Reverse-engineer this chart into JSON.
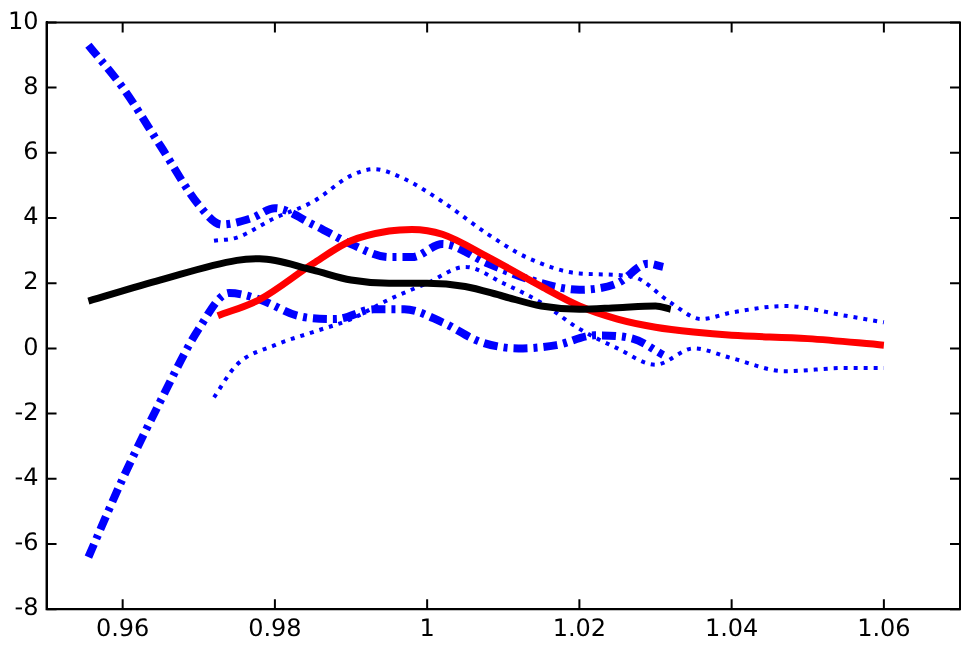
{
  "chart_data": {
    "type": "line",
    "xlim": [
      0.95,
      1.07
    ],
    "xticks": [
      {
        "value": 0.96,
        "label": "0.96"
      },
      {
        "value": 0.98,
        "label": "0.98"
      },
      {
        "value": 1,
        "label": "1"
      },
      {
        "value": 1.02,
        "label": "1.02"
      },
      {
        "value": 1.04,
        "label": "1.04"
      },
      {
        "value": 1.06,
        "label": "1.06"
      }
    ],
    "ylim": [
      -8,
      10
    ],
    "yticks": [
      -8,
      -6,
      -4,
      -2,
      0,
      2,
      4,
      6,
      8,
      10
    ],
    "grid": false,
    "legend": false,
    "marker": "none",
    "series": [
      {
        "color": "#000000",
        "line_style": "solid",
        "x": [
          0.9555,
          0.965,
          0.975,
          0.978,
          0.985,
          0.99,
          0.995,
          1.0,
          1.005,
          1.01,
          1.015,
          1.02,
          1.025,
          1.03,
          1.032
        ],
        "values": [
          1.45,
          2.1,
          2.7,
          2.75,
          2.4,
          2.1,
          2.0,
          2.0,
          1.9,
          1.6,
          1.3,
          1.2,
          1.25,
          1.3,
          1.2
        ]
      },
      {
        "color": "#ff0000",
        "line_style": "solid",
        "x": [
          0.9725,
          0.978,
          0.985,
          0.99,
          0.995,
          0.998,
          1.002,
          1.008,
          1.015,
          1.02,
          1.025,
          1.03,
          1.035,
          1.04,
          1.05,
          1.06
        ],
        "values": [
          1.0,
          1.5,
          2.6,
          3.3,
          3.6,
          3.65,
          3.5,
          2.8,
          1.9,
          1.3,
          0.9,
          0.65,
          0.5,
          0.4,
          0.3,
          0.1
        ]
      },
      {
        "color": "#0000ff",
        "line_style": "dashdot",
        "x": [
          0.9555,
          0.96,
          0.965,
          0.97,
          0.973,
          0.977,
          0.98,
          0.985,
          0.99,
          0.995,
          0.998,
          1.002,
          1.008,
          1.015,
          1.02,
          1.025,
          1.029,
          1.031
        ],
        "values": [
          9.3,
          8.0,
          6.2,
          4.4,
          3.8,
          4.0,
          4.3,
          3.8,
          3.2,
          2.8,
          2.8,
          3.2,
          2.6,
          2.0,
          1.8,
          2.0,
          2.6,
          2.5
        ]
      },
      {
        "color": "#0000ff",
        "line_style": "dashdot",
        "x": [
          0.9555,
          0.96,
          0.965,
          0.97,
          0.974,
          0.978,
          0.983,
          0.988,
          0.993,
          0.997,
          1.002,
          1.007,
          1.012,
          1.017,
          1.022,
          1.027,
          1.031
        ],
        "values": [
          -6.4,
          -4.0,
          -1.6,
          0.6,
          1.7,
          1.5,
          1.0,
          0.9,
          1.2,
          1.2,
          0.8,
          0.2,
          0.0,
          0.1,
          0.4,
          0.3,
          -0.2
        ]
      },
      {
        "color": "#0000ff",
        "line_style": "dotted",
        "x": [
          0.972,
          0.975,
          0.98,
          0.985,
          0.99,
          0.993,
          0.997,
          1.002,
          1.008,
          1.013,
          1.02,
          1.027,
          1.032,
          1.036,
          1.04,
          1.047,
          1.055,
          1.06
        ],
        "values": [
          3.3,
          3.4,
          4.0,
          4.5,
          5.3,
          5.5,
          5.2,
          4.5,
          3.5,
          2.8,
          2.3,
          2.2,
          1.4,
          0.9,
          1.1,
          1.3,
          1.0,
          0.8
        ]
      },
      {
        "color": "#0000ff",
        "line_style": "dotted",
        "x": [
          0.972,
          0.975,
          0.98,
          0.985,
          0.99,
          0.995,
          1.0,
          1.005,
          1.01,
          1.015,
          1.02,
          1.025,
          1.03,
          1.035,
          1.04,
          1.047,
          1.055,
          1.06
        ],
        "values": [
          -1.5,
          -0.5,
          0.1,
          0.5,
          0.9,
          1.5,
          2.0,
          2.5,
          2.0,
          1.4,
          0.6,
          0.0,
          -0.5,
          0.0,
          -0.3,
          -0.7,
          -0.6,
          -0.6
        ]
      }
    ]
  }
}
